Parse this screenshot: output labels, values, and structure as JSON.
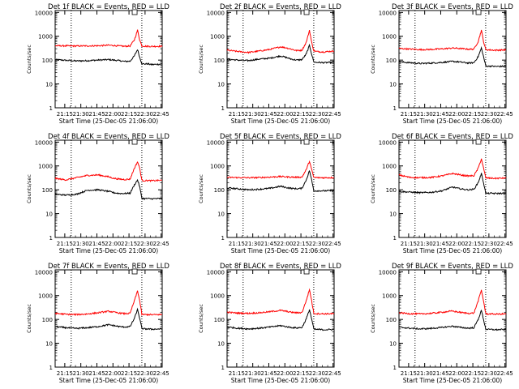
{
  "figure": {
    "start_time_label": "Start Time (25-Dec-05 21:06:00)",
    "y_label": "Counts/sec",
    "x_tick_labels": [
      "21:15",
      "21:30",
      "21:45",
      "22:00",
      "22:15",
      "22:30",
      "22:45"
    ],
    "y_tick_labels": [
      "1",
      "10",
      "100",
      "1000",
      "10000"
    ]
  },
  "colors": {
    "events": "#000000",
    "lld": "#ff0000"
  },
  "chart_data": [
    {
      "type": "line",
      "title": "Det 1f BLACK = Events, RED = LLD",
      "xlabel": "Start Time (25-Dec-05 21:06:00)",
      "ylabel": "Counts/sec",
      "x_unit": "minutes after 21:06",
      "xlim": [
        0,
        100
      ],
      "ylim": [
        1,
        12000
      ],
      "y_scale": "log",
      "x_ticks": [
        "21:15",
        "21:30",
        "21:45",
        "22:00",
        "22:15",
        "22:30",
        "22:45"
      ],
      "vlines_min": [
        15,
        81
      ],
      "x": [
        0,
        10,
        20,
        30,
        40,
        50,
        55,
        60,
        65,
        70,
        74,
        77,
        79,
        81,
        83,
        86,
        90,
        100
      ],
      "series": [
        {
          "name": "Events",
          "values": [
            105,
            98,
            92,
            95,
            100,
            105,
            100,
            95,
            88,
            90,
            150,
            280,
            130,
            72,
            68,
            70,
            65,
            68
          ]
        },
        {
          "name": "LLD",
          "values": [
            400,
            395,
            390,
            395,
            400,
            420,
            410,
            390,
            380,
            390,
            700,
            1800,
            700,
            400,
            385,
            380,
            375,
            380
          ]
        }
      ]
    },
    {
      "type": "line",
      "title": "Det 2f BLACK = Events, RED = LLD",
      "xlabel": "Start Time (25-Dec-05 21:06:00)",
      "ylabel": "Counts/sec",
      "x_unit": "minutes after 21:06",
      "xlim": [
        0,
        100
      ],
      "ylim": [
        1,
        12000
      ],
      "y_scale": "log",
      "x_ticks": [
        "21:15",
        "21:30",
        "21:45",
        "22:00",
        "22:15",
        "22:30",
        "22:45"
      ],
      "vlines_min": [
        15,
        81
      ],
      "x": [
        0,
        10,
        20,
        30,
        40,
        50,
        55,
        60,
        65,
        70,
        74,
        77,
        79,
        81,
        83,
        86,
        90,
        100
      ],
      "series": [
        {
          "name": "Events",
          "values": [
            110,
            100,
            95,
            110,
            120,
            150,
            130,
            110,
            100,
            105,
            180,
            420,
            180,
            85,
            80,
            80,
            78,
            80
          ]
        },
        {
          "name": "LLD",
          "values": [
            260,
            230,
            210,
            240,
            280,
            360,
            330,
            290,
            250,
            260,
            560,
            1800,
            560,
            250,
            230,
            225,
            220,
            240
          ]
        }
      ]
    },
    {
      "type": "line",
      "title": "Det 3f BLACK = Events, RED = LLD",
      "xlabel": "Start Time (25-Dec-05 21:06:00)",
      "ylabel": "Counts/sec",
      "x_unit": "minutes after 21:06",
      "xlim": [
        0,
        100
      ],
      "ylim": [
        1,
        12000
      ],
      "y_scale": "log",
      "x_ticks": [
        "21:15",
        "21:30",
        "21:45",
        "22:00",
        "22:15",
        "22:30",
        "22:45"
      ],
      "vlines_min": [
        15,
        81
      ],
      "x": [
        0,
        10,
        20,
        30,
        40,
        50,
        55,
        60,
        65,
        70,
        74,
        77,
        79,
        81,
        83,
        86,
        90,
        100
      ],
      "series": [
        {
          "name": "Events",
          "values": [
            85,
            78,
            72,
            75,
            80,
            88,
            85,
            80,
            75,
            78,
            140,
            320,
            140,
            58,
            55,
            56,
            54,
            55
          ]
        },
        {
          "name": "LLD",
          "values": [
            310,
            290,
            275,
            280,
            295,
            320,
            310,
            300,
            285,
            290,
            600,
            1800,
            600,
            280,
            270,
            265,
            260,
            268
          ]
        }
      ]
    },
    {
      "type": "line",
      "title": "Det 4f BLACK = Events, RED = LLD",
      "xlabel": "Start Time (25-Dec-05 21:06:00)",
      "ylabel": "Counts/sec",
      "x_unit": "minutes after 21:06",
      "xlim": [
        0,
        100
      ],
      "ylim": [
        1,
        12000
      ],
      "y_scale": "log",
      "x_ticks": [
        "21:15",
        "21:30",
        "21:45",
        "22:00",
        "22:15",
        "22:30",
        "22:45"
      ],
      "vlines_min": [
        15,
        81
      ],
      "x": [
        0,
        10,
        20,
        30,
        40,
        50,
        55,
        60,
        65,
        70,
        74,
        77,
        79,
        81,
        83,
        86,
        90,
        100
      ],
      "series": [
        {
          "name": "Events",
          "values": [
            65,
            60,
            65,
            95,
            100,
            85,
            75,
            70,
            70,
            72,
            160,
            260,
            130,
            45,
            42,
            43,
            42,
            43
          ]
        },
        {
          "name": "LLD",
          "values": [
            300,
            260,
            320,
            400,
            420,
            350,
            300,
            280,
            270,
            280,
            800,
            1500,
            800,
            250,
            240,
            245,
            240,
            250
          ]
        }
      ]
    },
    {
      "type": "line",
      "title": "Det 5f BLACK = Events, RED = LLD",
      "xlabel": "Start Time (25-Dec-05 21:06:00)",
      "ylabel": "Counts/sec",
      "x_unit": "minutes after 21:06",
      "xlim": [
        0,
        100
      ],
      "ylim": [
        1,
        12000
      ],
      "y_scale": "log",
      "x_ticks": [
        "21:15",
        "21:30",
        "21:45",
        "22:00",
        "22:15",
        "22:30",
        "22:45"
      ],
      "vlines_min": [
        15,
        81
      ],
      "x": [
        0,
        10,
        20,
        30,
        40,
        50,
        55,
        60,
        65,
        70,
        74,
        77,
        79,
        81,
        83,
        86,
        90,
        100
      ],
      "series": [
        {
          "name": "Events",
          "values": [
            120,
            110,
            100,
            105,
            115,
            140,
            125,
            115,
            110,
            115,
            260,
            640,
            260,
            92,
            90,
            91,
            90,
            92
          ]
        },
        {
          "name": "LLD",
          "values": [
            330,
            325,
            320,
            325,
            340,
            360,
            350,
            340,
            335,
            340,
            700,
            1600,
            700,
            330,
            325,
            322,
            320,
            325
          ]
        }
      ]
    },
    {
      "type": "line",
      "title": "Det 6f BLACK = Events, RED = LLD",
      "xlabel": "Start Time (25-Dec-05 21:06:00)",
      "ylabel": "Counts/sec",
      "x_unit": "minutes after 21:06",
      "xlim": [
        0,
        100
      ],
      "ylim": [
        1,
        12000
      ],
      "y_scale": "log",
      "x_ticks": [
        "21:15",
        "21:30",
        "21:45",
        "22:00",
        "22:15",
        "22:30",
        "22:45"
      ],
      "vlines_min": [
        15,
        81
      ],
      "x": [
        0,
        10,
        20,
        30,
        40,
        50,
        55,
        60,
        65,
        70,
        74,
        77,
        79,
        81,
        83,
        86,
        90,
        100
      ],
      "series": [
        {
          "name": "Events",
          "values": [
            85,
            80,
            75,
            78,
            90,
            130,
            115,
            105,
            100,
            105,
            200,
            480,
            200,
            72,
            70,
            71,
            70,
            71
          ]
        },
        {
          "name": "LLD",
          "values": [
            420,
            330,
            320,
            330,
            380,
            480,
            440,
            400,
            380,
            390,
            800,
            2000,
            800,
            320,
            310,
            305,
            300,
            310
          ]
        }
      ]
    },
    {
      "type": "line",
      "title": "Det 7f BLACK = Events, RED = LLD",
      "xlabel": "Start Time (25-Dec-05 21:06:00)",
      "ylabel": "Counts/sec",
      "x_unit": "minutes after 21:06",
      "xlim": [
        0,
        100
      ],
      "ylim": [
        1,
        12000
      ],
      "y_scale": "log",
      "x_ticks": [
        "21:15",
        "21:30",
        "21:45",
        "22:00",
        "22:15",
        "22:30",
        "22:45"
      ],
      "vlines_min": [
        15,
        81
      ],
      "x": [
        0,
        10,
        20,
        30,
        40,
        50,
        55,
        60,
        65,
        70,
        74,
        77,
        79,
        81,
        83,
        86,
        90,
        100
      ],
      "series": [
        {
          "name": "Events",
          "values": [
            50,
            45,
            42,
            45,
            50,
            60,
            55,
            50,
            48,
            50,
            110,
            260,
            110,
            42,
            40,
            40,
            39,
            40
          ]
        },
        {
          "name": "LLD",
          "values": [
            180,
            165,
            160,
            170,
            190,
            220,
            200,
            185,
            175,
            180,
            600,
            1600,
            600,
            165,
            160,
            160,
            158,
            160
          ]
        }
      ]
    },
    {
      "type": "line",
      "title": "Det 8f BLACK = Events, RED = LLD",
      "xlabel": "Start Time (25-Dec-05 21:06:00)",
      "ylabel": "Counts/sec",
      "x_unit": "minutes after 21:06",
      "xlim": [
        0,
        100
      ],
      "ylim": [
        1,
        12000
      ],
      "y_scale": "log",
      "x_ticks": [
        "21:15",
        "21:30",
        "21:45",
        "22:00",
        "22:15",
        "22:30",
        "22:45"
      ],
      "vlines_min": [
        15,
        81
      ],
      "x": [
        0,
        10,
        20,
        30,
        40,
        50,
        55,
        60,
        65,
        70,
        74,
        77,
        79,
        81,
        83,
        86,
        90,
        100
      ],
      "series": [
        {
          "name": "Events",
          "values": [
            48,
            43,
            40,
            43,
            48,
            55,
            50,
            46,
            44,
            46,
            105,
            260,
            105,
            40,
            38,
            38,
            37,
            38
          ]
        },
        {
          "name": "LLD",
          "values": [
            200,
            185,
            180,
            190,
            210,
            240,
            220,
            200,
            190,
            195,
            620,
            1800,
            620,
            180,
            175,
            175,
            172,
            175
          ]
        }
      ]
    },
    {
      "type": "line",
      "title": "Det 9f BLACK = Events, RED = LLD",
      "xlabel": "Start Time (25-Dec-05 21:06:00)",
      "ylabel": "Counts/sec",
      "x_unit": "minutes after 21:06",
      "xlim": [
        0,
        100
      ],
      "ylim": [
        1,
        12000
      ],
      "y_scale": "log",
      "x_ticks": [
        "21:15",
        "21:30",
        "21:45",
        "22:00",
        "22:15",
        "22:30",
        "22:45"
      ],
      "vlines_min": [
        15,
        81
      ],
      "x": [
        0,
        10,
        20,
        30,
        40,
        50,
        55,
        60,
        65,
        70,
        74,
        77,
        79,
        81,
        83,
        86,
        90,
        100
      ],
      "series": [
        {
          "name": "Events",
          "values": [
            47,
            43,
            40,
            42,
            46,
            52,
            48,
            45,
            43,
            45,
            100,
            240,
            100,
            40,
            38,
            38,
            37,
            38
          ]
        },
        {
          "name": "LLD",
          "values": [
            190,
            175,
            170,
            180,
            200,
            225,
            205,
            190,
            180,
            185,
            600,
            1700,
            600,
            175,
            170,
            170,
            168,
            170
          ]
        }
      ]
    }
  ]
}
